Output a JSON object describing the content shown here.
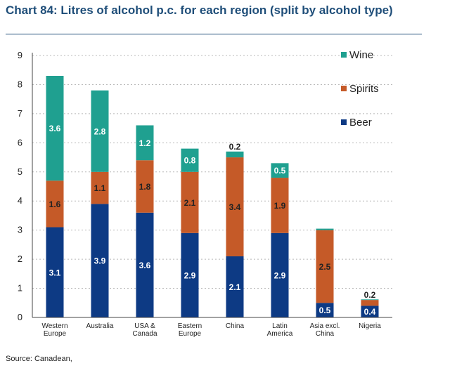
{
  "chart_data": {
    "type": "bar",
    "stacked": true,
    "title": "Chart 84: Litres of alcohol p.c. for each region (split by alcohol type)",
    "source": "Source: Canadean,",
    "categories": [
      [
        "Western",
        "Europe"
      ],
      [
        "Australia"
      ],
      [
        "USA &",
        "Canada"
      ],
      [
        "Eastern",
        "Europe"
      ],
      [
        "China"
      ],
      [
        "Latin",
        "America"
      ],
      [
        "Asia excl.",
        "China"
      ],
      [
        "Nigeria"
      ]
    ],
    "series": [
      {
        "name": "Beer",
        "color": "#0d3a84",
        "label_color": "#ffffff",
        "values": [
          3.1,
          3.9,
          3.6,
          2.9,
          2.1,
          2.9,
          0.5,
          0.4
        ],
        "labels": [
          "3.1",
          "3.9",
          "3.6",
          "2.9",
          "2.1",
          "2.9",
          "0.5",
          "0.4"
        ]
      },
      {
        "name": "Spirits",
        "color": "#c55a28",
        "label_color": "#222222",
        "values": [
          1.6,
          1.1,
          1.8,
          2.1,
          3.4,
          1.9,
          2.5,
          0.2
        ],
        "labels": [
          "1.6",
          "1.1",
          "1.8",
          "2.1",
          "3.4",
          "1.9",
          "2.5",
          "0.2"
        ]
      },
      {
        "name": "Wine",
        "color": "#1fa090",
        "label_color": "#ffffff",
        "values": [
          3.6,
          2.8,
          1.2,
          0.8,
          0.2,
          0.5,
          0.05,
          0.02
        ],
        "labels": [
          "3.6",
          "2.8",
          "1.2",
          "0.8",
          "0.2",
          "0.5",
          "",
          ""
        ]
      }
    ],
    "legend_order": [
      "Wine",
      "Spirits",
      "Beer"
    ],
    "legend_position": "top-right",
    "ylim": [
      0,
      9
    ],
    "yticks": [
      "0",
      "1",
      "2",
      "3",
      "4",
      "5",
      "6",
      "7",
      "8",
      "9"
    ],
    "grid": true,
    "xlabel": "",
    "ylabel": ""
  }
}
